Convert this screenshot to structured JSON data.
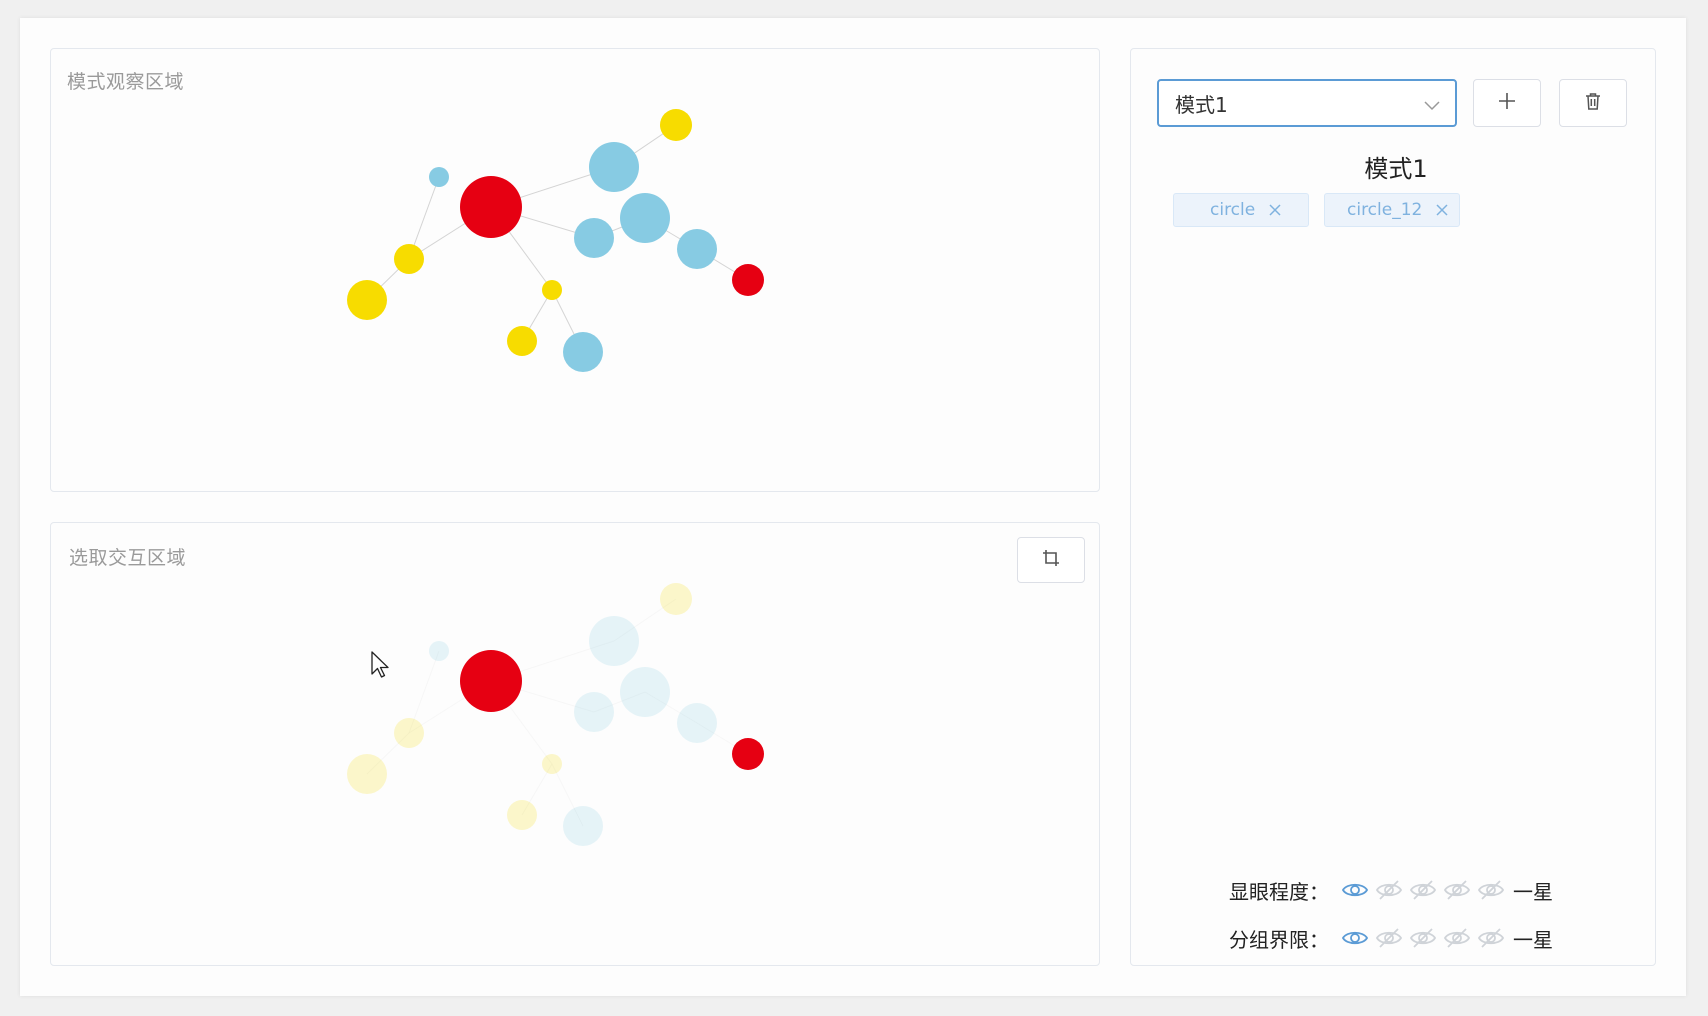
{
  "observation_panel": {
    "title": "模式观察区域"
  },
  "selection_panel": {
    "title": "选取交互区域"
  },
  "graph": {
    "colors": {
      "red": "#e60012",
      "yellow": "#f7dc00",
      "blue": "#87cbe3",
      "edge": "#d4d4d4"
    },
    "nodes": [
      {
        "id": "n0",
        "color": "red",
        "r": 31,
        "selected": true
      },
      {
        "id": "n1",
        "color": "blue",
        "r": 10,
        "selected": false
      },
      {
        "id": "n2",
        "color": "yellow",
        "r": 15,
        "selected": false
      },
      {
        "id": "n3",
        "color": "yellow",
        "r": 20,
        "selected": false
      },
      {
        "id": "n4",
        "color": "blue",
        "r": 25,
        "selected": false
      },
      {
        "id": "n5",
        "color": "yellow",
        "r": 16,
        "selected": false
      },
      {
        "id": "n6",
        "color": "blue",
        "r": 25,
        "selected": false
      },
      {
        "id": "n7",
        "color": "blue",
        "r": 20,
        "selected": false
      },
      {
        "id": "n8",
        "color": "blue",
        "r": 20,
        "selected": false
      },
      {
        "id": "n9",
        "color": "red",
        "r": 16,
        "selected": true
      },
      {
        "id": "n10",
        "color": "yellow",
        "r": 10,
        "selected": false
      },
      {
        "id": "n11",
        "color": "yellow",
        "r": 15,
        "selected": false
      },
      {
        "id": "n12",
        "color": "blue",
        "r": 20,
        "selected": false
      }
    ],
    "edges": [
      [
        "n0",
        "n2"
      ],
      [
        "n2",
        "n3"
      ],
      [
        "n2",
        "n1"
      ],
      [
        "n0",
        "n4"
      ],
      [
        "n4",
        "n5"
      ],
      [
        "n0",
        "n7"
      ],
      [
        "n7",
        "n6"
      ],
      [
        "n6",
        "n8"
      ],
      [
        "n8",
        "n9"
      ],
      [
        "n0",
        "n10"
      ],
      [
        "n10",
        "n11"
      ],
      [
        "n10",
        "n12"
      ]
    ]
  },
  "sidebar": {
    "pattern_select": {
      "value": "模式1"
    },
    "pattern_title": "模式1",
    "tags": [
      {
        "label": "circle"
      },
      {
        "label": "circle_12"
      }
    ],
    "ratings": [
      {
        "label": "显眼程度：",
        "active": 1,
        "total": 5,
        "value": "一星"
      },
      {
        "label": "分组界限：",
        "active": 1,
        "total": 5,
        "value": "一星"
      }
    ],
    "icon_colors": {
      "active": "#5b9bd5",
      "inactive": "#cfd3d8"
    }
  }
}
